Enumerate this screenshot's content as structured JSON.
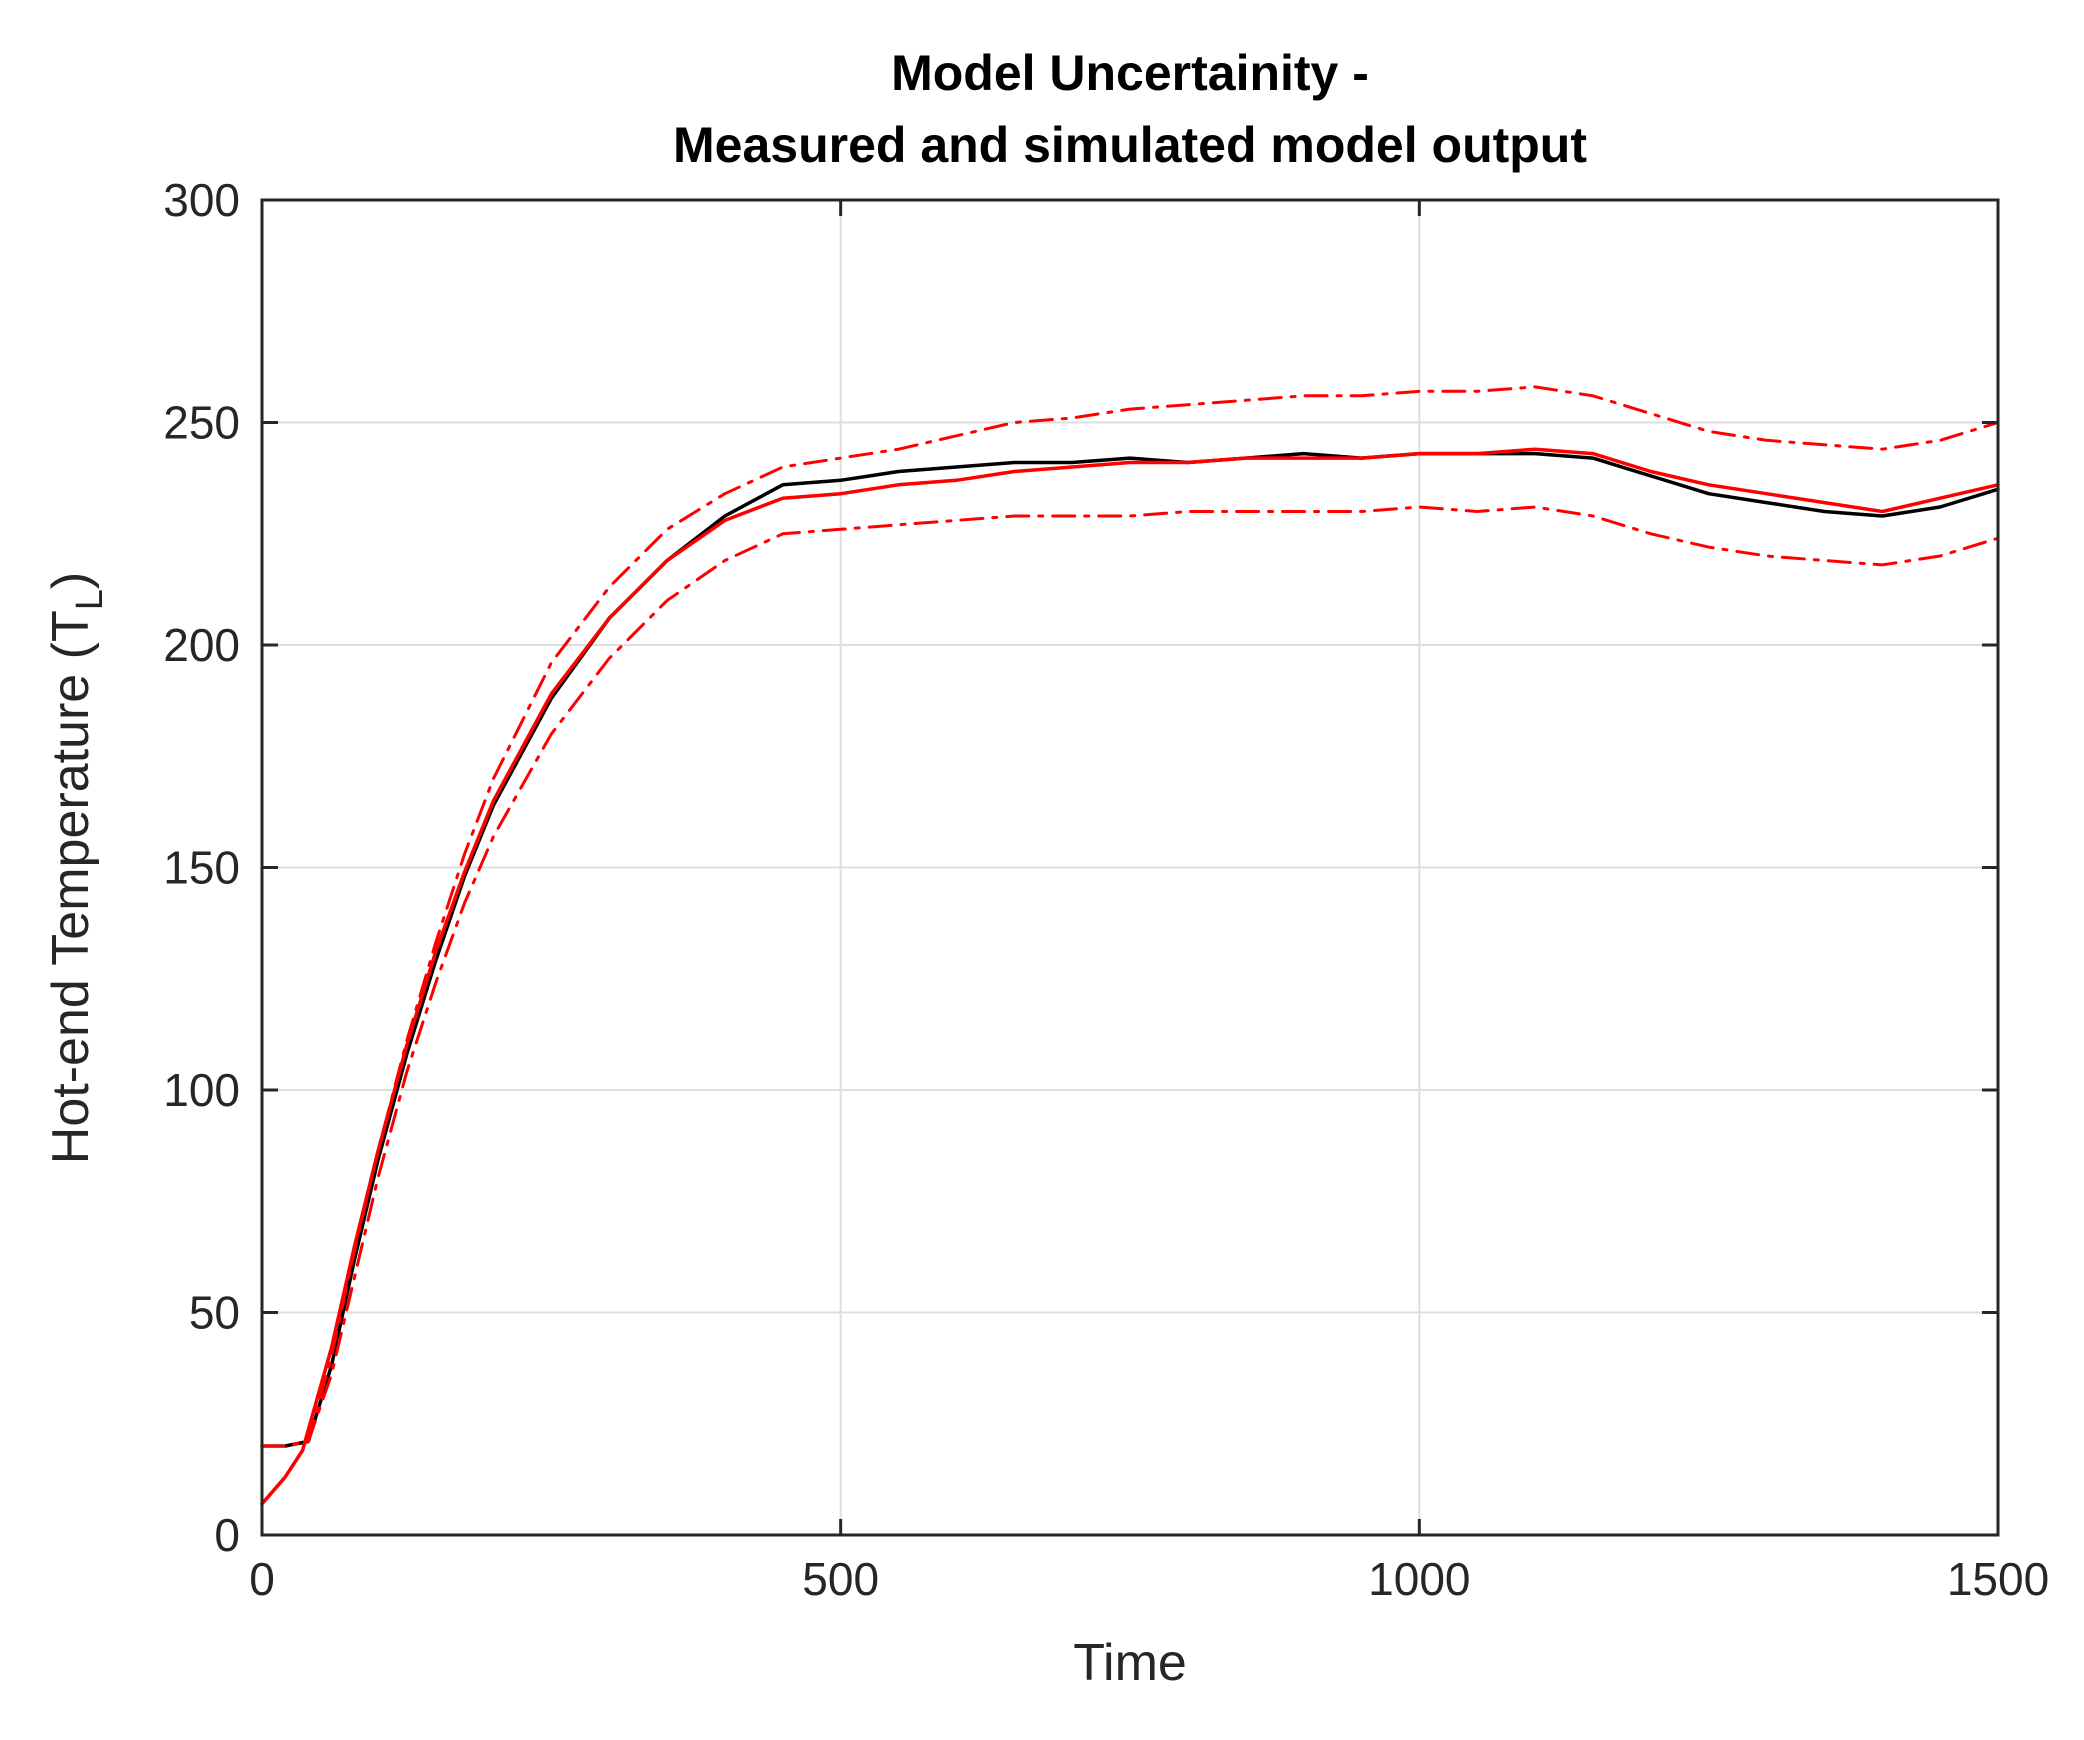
{
  "chart_data": {
    "type": "line",
    "title": [
      "Model Uncertainity -",
      "Measured and simulated model output"
    ],
    "xlabel": "Time",
    "ylabel": "Hot-end Temperature (T",
    "ylabel_subscript": "L",
    "ylabel_close": ")",
    "xlim": [
      0,
      1500
    ],
    "ylim": [
      0,
      300
    ],
    "xticks": [
      0,
      500,
      1000,
      1500
    ],
    "yticks": [
      0,
      50,
      100,
      150,
      200,
      250,
      300
    ],
    "xtick_labels": [
      "0",
      "500",
      "1000",
      "1500"
    ],
    "ytick_labels": [
      "0",
      "50",
      "100",
      "150",
      "200",
      "250",
      "300"
    ],
    "grid": true,
    "legend": "none",
    "series": [
      {
        "color": "#000000",
        "style": "solid",
        "x": [
          0,
          20,
          40,
          60,
          80,
          100,
          125,
          150,
          175,
          200,
          250,
          300,
          350,
          400,
          450,
          500,
          550,
          600,
          650,
          700,
          750,
          800,
          850,
          900,
          950,
          1000,
          1050,
          1100,
          1150,
          1200,
          1250,
          1300,
          1350,
          1400,
          1450,
          1500
        ],
        "y": [
          20,
          20,
          21,
          38,
          62,
          84,
          108,
          129,
          148,
          164,
          188,
          206,
          219,
          229,
          236,
          237,
          239,
          240,
          241,
          241,
          242,
          241,
          242,
          243,
          242,
          243,
          243,
          243,
          242,
          238,
          234,
          232,
          230,
          229,
          231,
          235
        ]
      },
      {
        "color": "#ff0000",
        "style": "solid",
        "x": [
          0,
          20,
          35,
          60,
          80,
          100,
          125,
          150,
          175,
          200,
          250,
          300,
          350,
          400,
          450,
          500,
          550,
          600,
          650,
          700,
          750,
          800,
          850,
          900,
          950,
          1000,
          1050,
          1100,
          1150,
          1200,
          1250,
          1300,
          1350,
          1400,
          1450,
          1500
        ],
        "y": [
          7,
          13,
          19,
          42,
          65,
          86,
          110,
          131,
          149,
          165,
          189,
          206,
          219,
          228,
          233,
          234,
          236,
          237,
          239,
          240,
          241,
          241,
          242,
          242,
          242,
          243,
          243,
          244,
          243,
          239,
          236,
          234,
          232,
          230,
          233,
          236
        ]
      },
      {
        "color": "#ff0000",
        "style": "dashdot",
        "x": [
          0,
          20,
          40,
          60,
          80,
          100,
          125,
          150,
          175,
          200,
          250,
          300,
          350,
          400,
          450,
          500,
          550,
          600,
          650,
          700,
          750,
          800,
          850,
          900,
          950,
          1000,
          1050,
          1100,
          1150,
          1200,
          1250,
          1300,
          1350,
          1400,
          1450,
          1500
        ],
        "y": [
          20,
          20,
          21,
          40,
          64,
          86,
          111,
          133,
          153,
          170,
          196,
          213,
          226,
          234,
          240,
          242,
          244,
          247,
          250,
          251,
          253,
          254,
          255,
          256,
          256,
          257,
          257,
          258,
          256,
          252,
          248,
          246,
          245,
          244,
          246,
          250
        ]
      },
      {
        "color": "#ff0000",
        "style": "dashdot",
        "x": [
          0,
          20,
          40,
          60,
          80,
          100,
          125,
          150,
          175,
          200,
          250,
          300,
          350,
          400,
          450,
          500,
          550,
          600,
          650,
          700,
          750,
          800,
          850,
          900,
          950,
          1000,
          1050,
          1100,
          1150,
          1200,
          1250,
          1300,
          1350,
          1400,
          1450,
          1500
        ],
        "y": [
          20,
          20,
          21,
          36,
          58,
          80,
          104,
          124,
          142,
          157,
          180,
          197,
          210,
          219,
          225,
          226,
          227,
          228,
          229,
          229,
          229,
          230,
          230,
          230,
          230,
          231,
          230,
          231,
          229,
          225,
          222,
          220,
          219,
          218,
          220,
          224
        ]
      }
    ]
  }
}
